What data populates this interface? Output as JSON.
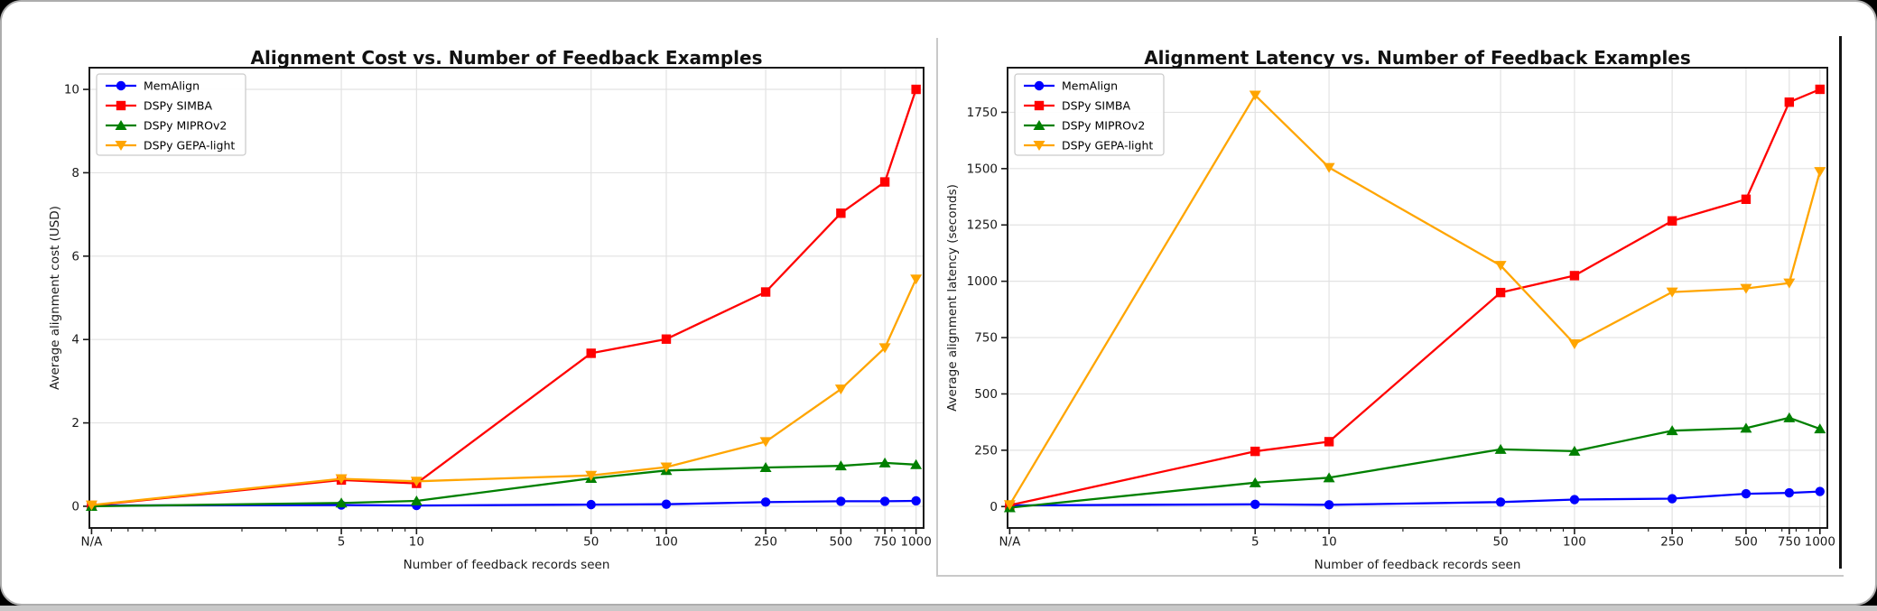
{
  "chart_data": [
    {
      "type": "line",
      "title": "Alignment Cost vs. Number of Feedback Examples",
      "xlabel": "Number of feedback records seen",
      "ylabel": "Average alignment cost (USD)",
      "x_scale": "log",
      "x_tick_labels": [
        "N/A",
        "5",
        "10",
        "50",
        "100",
        "250",
        "500",
        "750",
        "1000"
      ],
      "x_values": [
        0.5,
        5,
        10,
        50,
        100,
        250,
        500,
        750,
        1000
      ],
      "xlim": [
        0.49,
        1072
      ],
      "ylim": [
        -0.52,
        10.52
      ],
      "yticks": [
        0,
        2,
        4,
        6,
        8,
        10
      ],
      "y_tick_labels": [
        "0",
        "2",
        "4",
        "6",
        "8",
        "10"
      ],
      "x_minor_ticks": [
        0.6,
        0.7,
        0.8,
        0.9,
        2,
        3,
        4,
        6,
        7,
        8,
        9,
        20,
        30,
        40,
        60,
        70,
        80,
        90,
        200,
        300,
        400,
        600,
        700,
        800,
        900
      ],
      "grid": true,
      "legend_position": "upper left",
      "series": [
        {
          "name": "MemAlign",
          "color": "#0000ff",
          "marker": "circle",
          "values": [
            0.02,
            0.03,
            0.02,
            0.04,
            0.05,
            0.1,
            0.12,
            0.12,
            0.13
          ]
        },
        {
          "name": "DSPy SIMBA",
          "color": "#ff0000",
          "marker": "square",
          "values": [
            0.02,
            0.63,
            0.55,
            3.67,
            4.01,
            5.14,
            7.03,
            7.78,
            10.0
          ]
        },
        {
          "name": "DSPy MIPROv2",
          "color": "#008000",
          "marker": "triangle-up",
          "values": [
            0.0,
            0.08,
            0.13,
            0.67,
            0.86,
            0.93,
            0.97,
            1.04,
            1.0
          ]
        },
        {
          "name": "DSPy GEPA-light",
          "color": "#ffa500",
          "marker": "triangle-down",
          "values": [
            0.03,
            0.66,
            0.6,
            0.74,
            0.94,
            1.55,
            2.81,
            3.8,
            5.45
          ]
        }
      ]
    },
    {
      "type": "line",
      "title": "Alignment Latency vs. Number of Feedback Examples",
      "xlabel": "Number of feedback records seen",
      "ylabel": "Average alignment latency (seconds)",
      "x_scale": "log",
      "x_tick_labels": [
        "N/A",
        "5",
        "10",
        "50",
        "100",
        "250",
        "500",
        "750",
        "1000"
      ],
      "x_values": [
        0.5,
        5,
        10,
        50,
        100,
        250,
        500,
        750,
        1000
      ],
      "xlim": [
        0.49,
        1072
      ],
      "ylim": [
        -95,
        1948
      ],
      "yticks": [
        0,
        250,
        500,
        750,
        1000,
        1250,
        1500,
        1750
      ],
      "y_tick_labels": [
        "0",
        "250",
        "500",
        "750",
        "1000",
        "1250",
        "1500",
        "1750"
      ],
      "x_minor_ticks": [
        0.6,
        0.7,
        0.8,
        0.9,
        2,
        3,
        4,
        6,
        7,
        8,
        9,
        20,
        30,
        40,
        60,
        70,
        80,
        90,
        200,
        300,
        400,
        600,
        700,
        800,
        900
      ],
      "grid": true,
      "legend_position": "upper left",
      "series": [
        {
          "name": "MemAlign",
          "color": "#0000ff",
          "marker": "circle",
          "values": [
            5,
            10,
            8,
            20,
            31,
            35,
            57,
            61,
            67
          ]
        },
        {
          "name": "DSPy SIMBA",
          "color": "#ff0000",
          "marker": "square",
          "values": [
            6,
            245,
            288,
            950,
            1025,
            1268,
            1364,
            1795,
            1852
          ]
        },
        {
          "name": "DSPy MIPROv2",
          "color": "#008000",
          "marker": "triangle-up",
          "values": [
            -5,
            106,
            128,
            254,
            246,
            337,
            348,
            394,
            345
          ]
        },
        {
          "name": "DSPy GEPA-light",
          "color": "#ffa500",
          "marker": "triangle-down",
          "values": [
            8,
            1826,
            1505,
            1070,
            722,
            952,
            968,
            992,
            1487
          ]
        }
      ]
    }
  ],
  "decorations": {
    "scrollbar_present": true,
    "accent_colors": {
      "blue": "#0000ff",
      "red": "#ff0000",
      "green": "#008000",
      "orange": "#ffa500"
    },
    "grid_color": "#e2e2e2",
    "spine_color": "#1a1a1a"
  }
}
